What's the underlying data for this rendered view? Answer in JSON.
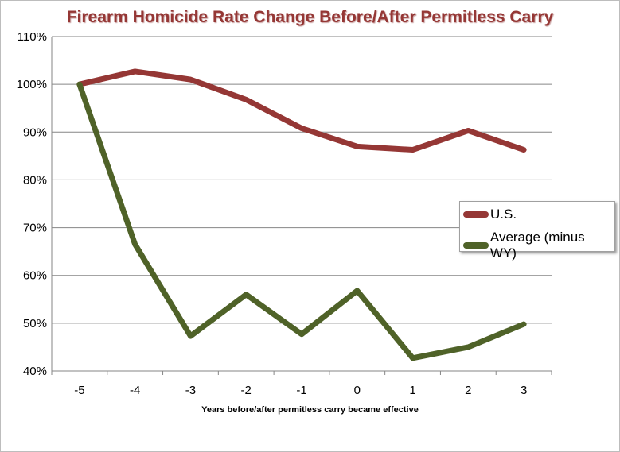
{
  "chart_data": {
    "type": "line",
    "title": "Firearm Homicide Rate Change Before/After Permitless Carry",
    "xlabel": "Years before/after permitless carry became effective",
    "ylabel": "",
    "x": [
      -5,
      -4,
      -3,
      -2,
      -1,
      0,
      1,
      2,
      3
    ],
    "x_tick_labels": [
      "-5",
      "-4",
      "-3",
      "-2",
      "-1",
      "0",
      "1",
      "2",
      "3"
    ],
    "y_tick_labels": [
      "40%",
      "50%",
      "60%",
      "70%",
      "80%",
      "90%",
      "100%",
      "110%"
    ],
    "ylim": [
      40,
      110
    ],
    "grid": true,
    "legend_position": "right",
    "series": [
      {
        "name": "U.S.",
        "color": "#953735",
        "values": [
          100,
          102.7,
          101,
          96.8,
          90.8,
          87,
          86.3,
          90.3,
          86.3
        ]
      },
      {
        "name": "Average (minus WY)",
        "color": "#4f6228",
        "values": [
          100,
          66.5,
          47.3,
          56,
          47.7,
          56.8,
          42.7,
          45,
          49.8
        ]
      }
    ]
  }
}
